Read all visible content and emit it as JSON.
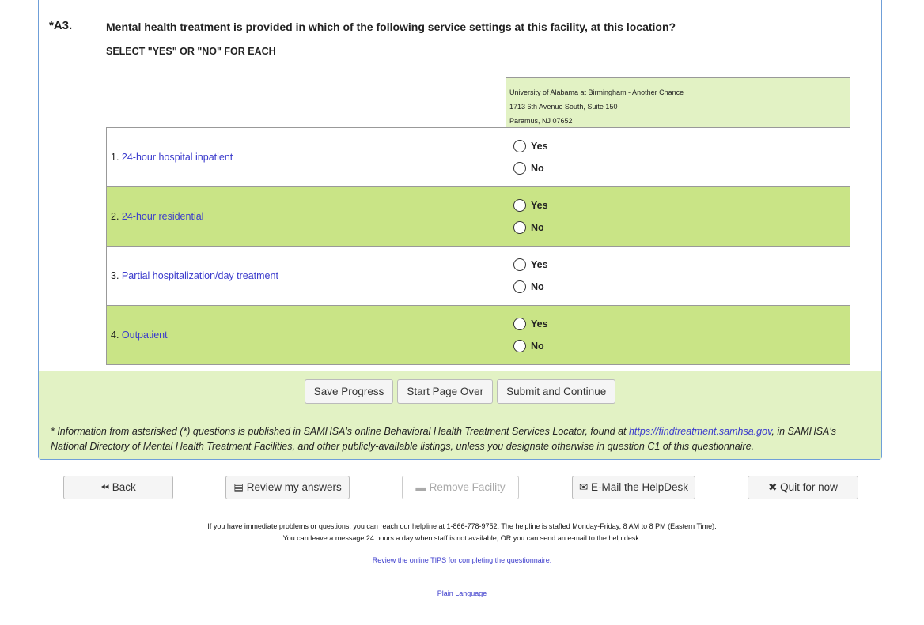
{
  "question": {
    "number": "*A3.",
    "term": "Mental health treatment",
    "text": " is provided in which of the following service settings at this facility, at this location?",
    "instruction": "SELECT \"YES\" OR \"NO\" FOR EACH"
  },
  "facility": {
    "name": "University of Alabama at Birmingham - Another Chance",
    "address1": "1713 6th Avenue South, Suite 150",
    "address2": "Paramus, NJ 07652"
  },
  "rows": [
    {
      "num": "1. ",
      "label": "24-hour hospital inpatient",
      "yes": "Yes",
      "no": "No"
    },
    {
      "num": "2. ",
      "label": "24-hour residential",
      "yes": "Yes",
      "no": "No"
    },
    {
      "num": "3. ",
      "label": "Partial hospitalization/day treatment",
      "yes": "Yes",
      "no": "No"
    },
    {
      "num": "4. ",
      "label": "Outpatient",
      "yes": "Yes",
      "no": "No"
    }
  ],
  "form_buttons": {
    "save": "Save Progress",
    "start_over": "Start Page Over",
    "submit": "Submit and Continue"
  },
  "note": {
    "text1": "* Information from asterisked (*) questions is published in SAMHSA's online Behavioral Health Treatment Services Locator, found at ",
    "link": "https://findtreatment.samhsa.gov",
    "text2": ", in SAMHSA's National Directory of Mental Health Treatment Facilities, and other publicly-available listings, unless you designate otherwise in question C1 of this questionnaire."
  },
  "nav": {
    "back": "Back",
    "review": "Review my answers",
    "remove": "Remove Facility",
    "email": "E-Mail the HelpDesk",
    "quit": "Quit for now"
  },
  "help": {
    "line1": "If you have immediate problems or questions, you can reach our helpline at 1-866-778-9752. The helpline is staffed Monday-Friday, 8 AM to 8 PM (Eastern Time).",
    "line2": "You can leave a message 24 hours a day when staff is not available, OR you can send an e-mail to the help desk.",
    "tips": "Review the online TIPS for completing the questionnaire.",
    "plain": "Plain Language"
  },
  "colors": {
    "green_row": "#c9e486",
    "light_green": "#e2f2c4",
    "link": "#3b3bcc"
  }
}
